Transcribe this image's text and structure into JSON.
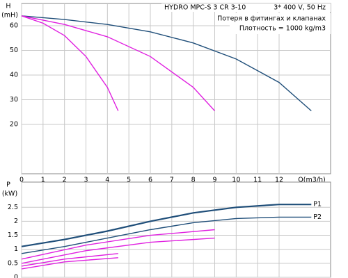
{
  "chart_data": [
    {
      "type": "line",
      "y_label": "H",
      "y_unit": "(mH)",
      "x_label": "Q(m3/h)",
      "annotations": [
        "HYDRO MPC-S 3 CR 3-10",
        "3* 400 V, 50 Hz",
        "Потеря в фитингах и клапанах",
        "Плотность = 1000 kg/m3"
      ],
      "xlim": [
        0,
        14.4
      ],
      "xticks": [
        0,
        1,
        2,
        3,
        4,
        5,
        6,
        7,
        8,
        9,
        10,
        11,
        12
      ],
      "ylim": [
        0,
        69
      ],
      "yticks": [
        20,
        30,
        40,
        50,
        60
      ],
      "grid": true,
      "series": [
        {
          "color": "#1f4e79",
          "x": [
            0,
            2,
            4,
            6,
            8,
            10,
            12,
            13.5
          ],
          "values": [
            64,
            62.5,
            60.5,
            57.5,
            53,
            46.5,
            37,
            25.5
          ]
        },
        {
          "color": "#e020e0",
          "x": [
            0,
            2,
            4,
            6,
            8,
            9
          ],
          "values": [
            64,
            60.5,
            55.5,
            47.5,
            35,
            25.5
          ]
        },
        {
          "color": "#e020e0",
          "x": [
            0,
            1,
            2,
            3,
            4,
            4.5
          ],
          "values": [
            64,
            61,
            56,
            47.5,
            35,
            25.5
          ]
        }
      ]
    },
    {
      "type": "line",
      "y_label": "P",
      "y_unit": "(kW)",
      "xlim": [
        0,
        14.4
      ],
      "ylim": [
        0,
        3.4
      ],
      "yticks": [
        0,
        0.5,
        1,
        1.5,
        2,
        2.5
      ],
      "grid": true,
      "series": [
        {
          "name": "P1",
          "color": "#1f4e79",
          "x": [
            0,
            2,
            4,
            6,
            8,
            10,
            12,
            13.5
          ],
          "values": [
            1.1,
            1.35,
            1.65,
            2.0,
            2.3,
            2.5,
            2.6,
            2.6
          ]
        },
        {
          "name": "P2",
          "color": "#1f4e79",
          "x": [
            0,
            2,
            4,
            6,
            8,
            10,
            12,
            13.5
          ],
          "values": [
            0.85,
            1.1,
            1.4,
            1.7,
            1.95,
            2.1,
            2.15,
            2.15
          ]
        },
        {
          "color": "#e020e0",
          "x": [
            0,
            3,
            6,
            9
          ],
          "values": [
            0.65,
            1.15,
            1.5,
            1.7
          ]
        },
        {
          "color": "#e020e0",
          "x": [
            0,
            3,
            6,
            9
          ],
          "values": [
            0.5,
            0.95,
            1.25,
            1.4
          ]
        },
        {
          "color": "#e020e0",
          "x": [
            0,
            2,
            4.5
          ],
          "values": [
            0.4,
            0.65,
            0.85
          ]
        },
        {
          "color": "#e020e0",
          "x": [
            0,
            2,
            4.5
          ],
          "values": [
            0.3,
            0.55,
            0.7
          ]
        }
      ]
    }
  ]
}
